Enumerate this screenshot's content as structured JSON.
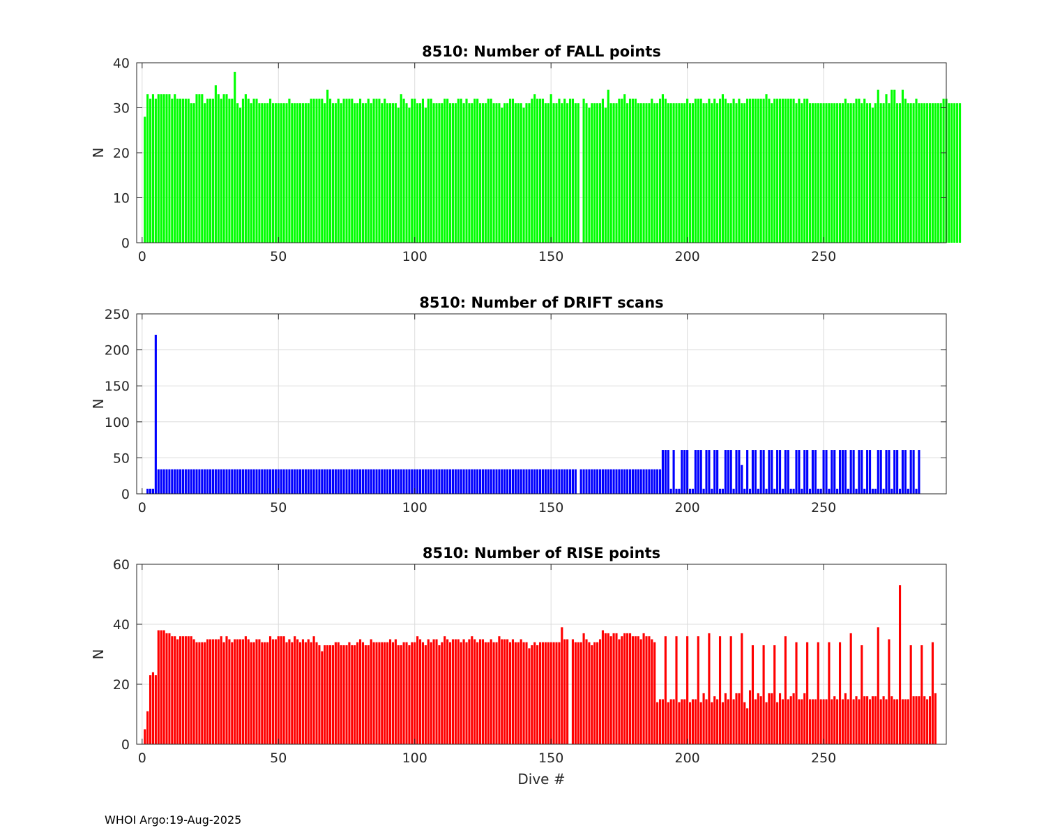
{
  "chart_data": [
    {
      "type": "bar",
      "title": "8510: Number of FALL points",
      "xlabel": "",
      "ylabel": "N",
      "xlim": [
        -2,
        295
      ],
      "ylim": [
        0,
        40
      ],
      "xticks": [
        0,
        50,
        100,
        150,
        200,
        250
      ],
      "yticks": [
        0,
        10,
        20,
        30,
        40
      ],
      "grid": true,
      "color": "#00ff00",
      "x_start": 1,
      "values": [
        28,
        33,
        32,
        33,
        32,
        33,
        33,
        33,
        33,
        33,
        32,
        33,
        32,
        32,
        32,
        32,
        32,
        31,
        31,
        33,
        33,
        33,
        31,
        32,
        32,
        32,
        35,
        33,
        32,
        33,
        33,
        32,
        32,
        38,
        31,
        30,
        32,
        33,
        32,
        31,
        32,
        32,
        31,
        31,
        31,
        31,
        32,
        31,
        31,
        31,
        31,
        31,
        31,
        32,
        31,
        31,
        31,
        31,
        31,
        31,
        31,
        32,
        32,
        32,
        32,
        32,
        31,
        34,
        32,
        31,
        31,
        32,
        31,
        32,
        32,
        32,
        32,
        31,
        31,
        32,
        31,
        31,
        32,
        31,
        32,
        32,
        32,
        31,
        32,
        31,
        31,
        31,
        31,
        30,
        33,
        32,
        31,
        30,
        32,
        32,
        31,
        31,
        32,
        30,
        32,
        32,
        31,
        31,
        31,
        31,
        32,
        32,
        31,
        31,
        31,
        32,
        32,
        31,
        32,
        31,
        31,
        32,
        32,
        31,
        31,
        31,
        32,
        32,
        31,
        31,
        31,
        30,
        31,
        31,
        32,
        32,
        31,
        31,
        31,
        30,
        31,
        31,
        32,
        33,
        32,
        32,
        32,
        31,
        31,
        33,
        31,
        31,
        32,
        31,
        32,
        31,
        32,
        32,
        31,
        31,
        0,
        32,
        31,
        30,
        31,
        31,
        31,
        31,
        32,
        30,
        34,
        31,
        31,
        31,
        32,
        32,
        33,
        31,
        32,
        32,
        32,
        31,
        31,
        31,
        31,
        31,
        32,
        31,
        31,
        32,
        33,
        32,
        31,
        31,
        31,
        31,
        31,
        31,
        31,
        32,
        31,
        31,
        32,
        32,
        32,
        31,
        31,
        32,
        31,
        32,
        31,
        32,
        33,
        32,
        31,
        31,
        32,
        31,
        32,
        31,
        31,
        32,
        32,
        32,
        32,
        32,
        32,
        32,
        33,
        32,
        31,
        32,
        32,
        32,
        32,
        32,
        32,
        32,
        32,
        31,
        32,
        31,
        32,
        32,
        31,
        31,
        31,
        31,
        31,
        31,
        31,
        31,
        31,
        31,
        31,
        31,
        31,
        32,
        31,
        31,
        31,
        32,
        32,
        31,
        32,
        31,
        31,
        30,
        31,
        34,
        31,
        31,
        33,
        31,
        34,
        34,
        31,
        31,
        34,
        32,
        31,
        31,
        31,
        32,
        31,
        31,
        31,
        31,
        31,
        31,
        31,
        31,
        31,
        32,
        32,
        31,
        31,
        31,
        31,
        31
      ]
    },
    {
      "type": "bar",
      "title": "8510: Number of DRIFT scans",
      "xlabel": "",
      "ylabel": "N",
      "xlim": [
        -2,
        295
      ],
      "ylim": [
        0,
        250
      ],
      "xticks": [
        0,
        50,
        100,
        150,
        200,
        250
      ],
      "yticks": [
        0,
        50,
        100,
        150,
        200,
        250
      ],
      "grid": true,
      "color": "#0000ff",
      "x_start": 1,
      "values": [
        0,
        7,
        7,
        7,
        221,
        34,
        34,
        34,
        34,
        34,
        34,
        34,
        34,
        34,
        34,
        34,
        34,
        34,
        34,
        34,
        34,
        34,
        34,
        34,
        34,
        34,
        34,
        34,
        34,
        34,
        34,
        34,
        34,
        34,
        34,
        34,
        34,
        34,
        34,
        34,
        34,
        34,
        34,
        34,
        34,
        34,
        34,
        34,
        34,
        34,
        34,
        34,
        34,
        34,
        34,
        34,
        34,
        34,
        34,
        34,
        34,
        34,
        34,
        34,
        34,
        34,
        34,
        34,
        34,
        34,
        34,
        34,
        34,
        34,
        34,
        34,
        34,
        34,
        34,
        34,
        34,
        34,
        34,
        34,
        34,
        34,
        34,
        34,
        34,
        34,
        34,
        34,
        34,
        34,
        34,
        34,
        34,
        34,
        34,
        34,
        34,
        34,
        34,
        34,
        34,
        34,
        34,
        34,
        34,
        34,
        34,
        34,
        34,
        34,
        34,
        34,
        34,
        34,
        34,
        34,
        34,
        34,
        34,
        34,
        34,
        34,
        34,
        34,
        34,
        34,
        34,
        34,
        34,
        34,
        34,
        34,
        34,
        34,
        34,
        34,
        34,
        34,
        34,
        34,
        34,
        34,
        34,
        34,
        34,
        34,
        34,
        34,
        34,
        34,
        34,
        34,
        34,
        34,
        34,
        0,
        34,
        34,
        34,
        34,
        34,
        34,
        34,
        34,
        34,
        34,
        34,
        34,
        34,
        34,
        34,
        34,
        34,
        34,
        34,
        34,
        34,
        34,
        34,
        34,
        34,
        34,
        34,
        34,
        34,
        34,
        61,
        61,
        61,
        7,
        61,
        7,
        7,
        61,
        61,
        61,
        7,
        7,
        61,
        61,
        61,
        7,
        61,
        61,
        7,
        61,
        61,
        7,
        7,
        61,
        61,
        61,
        7,
        61,
        61,
        40,
        7,
        61,
        7,
        61,
        61,
        7,
        61,
        61,
        7,
        61,
        61,
        7,
        61,
        61,
        7,
        61,
        61,
        7,
        7,
        61,
        61,
        7,
        61,
        61,
        7,
        61,
        61,
        7,
        7,
        61,
        61,
        7,
        61,
        61,
        7,
        61,
        61,
        61,
        7,
        61,
        61,
        7,
        61,
        61,
        7,
        61,
        61,
        7,
        7,
        61,
        61,
        7,
        61,
        61,
        7,
        61,
        61,
        7,
        61,
        61,
        7,
        61,
        61,
        7,
        61
      ]
    },
    {
      "type": "bar",
      "title": "8510: Number of RISE points",
      "xlabel": "Dive #",
      "ylabel": "N",
      "xlim": [
        -2,
        295
      ],
      "ylim": [
        0,
        60
      ],
      "xticks": [
        0,
        50,
        100,
        150,
        200,
        250
      ],
      "yticks": [
        0,
        20,
        40,
        60
      ],
      "grid": true,
      "color": "#ff0000",
      "x_start": 1,
      "values": [
        5,
        11,
        23,
        24,
        23,
        38,
        38,
        38,
        37,
        37,
        36,
        36,
        35,
        36,
        36,
        36,
        36,
        36,
        35,
        34,
        34,
        34,
        34,
        35,
        35,
        35,
        35,
        35,
        36,
        34,
        36,
        35,
        34,
        35,
        35,
        35,
        35,
        36,
        35,
        34,
        34,
        35,
        35,
        34,
        34,
        34,
        36,
        35,
        35,
        36,
        36,
        36,
        34,
        35,
        34,
        36,
        35,
        34,
        35,
        34,
        35,
        34,
        36,
        34,
        33,
        31,
        33,
        33,
        33,
        33,
        34,
        34,
        33,
        33,
        33,
        34,
        33,
        33,
        34,
        35,
        34,
        33,
        33,
        35,
        34,
        34,
        34,
        34,
        34,
        34,
        35,
        34,
        35,
        33,
        33,
        34,
        34,
        33,
        34,
        34,
        36,
        35,
        34,
        33,
        35,
        34,
        35,
        35,
        33,
        34,
        36,
        35,
        34,
        35,
        35,
        35,
        34,
        35,
        34,
        35,
        36,
        35,
        34,
        35,
        35,
        34,
        34,
        35,
        34,
        34,
        36,
        35,
        35,
        35,
        34,
        35,
        34,
        34,
        35,
        34,
        34,
        32,
        33,
        34,
        33,
        34,
        34,
        34,
        34,
        34,
        34,
        34,
        34,
        39,
        35,
        35,
        0,
        35,
        34,
        34,
        34,
        37,
        35,
        34,
        33,
        34,
        34,
        35,
        38,
        37,
        37,
        36,
        37,
        37,
        35,
        36,
        37,
        37,
        37,
        36,
        36,
        36,
        35,
        37,
        36,
        36,
        35,
        34,
        14,
        15,
        15,
        36,
        14,
        15,
        15,
        36,
        14,
        15,
        15,
        36,
        14,
        15,
        15,
        36,
        14,
        17,
        15,
        37,
        14,
        16,
        15,
        36,
        14,
        17,
        15,
        36,
        15,
        17,
        17,
        37,
        14,
        12,
        18,
        33,
        15,
        17,
        16,
        33,
        14,
        17,
        17,
        33,
        14,
        17,
        15,
        36,
        15,
        16,
        17,
        34,
        15,
        15,
        17,
        34,
        15,
        15,
        15,
        34,
        15,
        15,
        15,
        34,
        15,
        16,
        15,
        34,
        15,
        17,
        15,
        37,
        15,
        16,
        15,
        33,
        16,
        16,
        15,
        16,
        16,
        39,
        15,
        16,
        15,
        35,
        16,
        15,
        15,
        53,
        15,
        15,
        15,
        33,
        16,
        16,
        16,
        33,
        16,
        15,
        16,
        34,
        17
      ]
    }
  ],
  "footer": "WHOI Argo:19-Aug-2025"
}
